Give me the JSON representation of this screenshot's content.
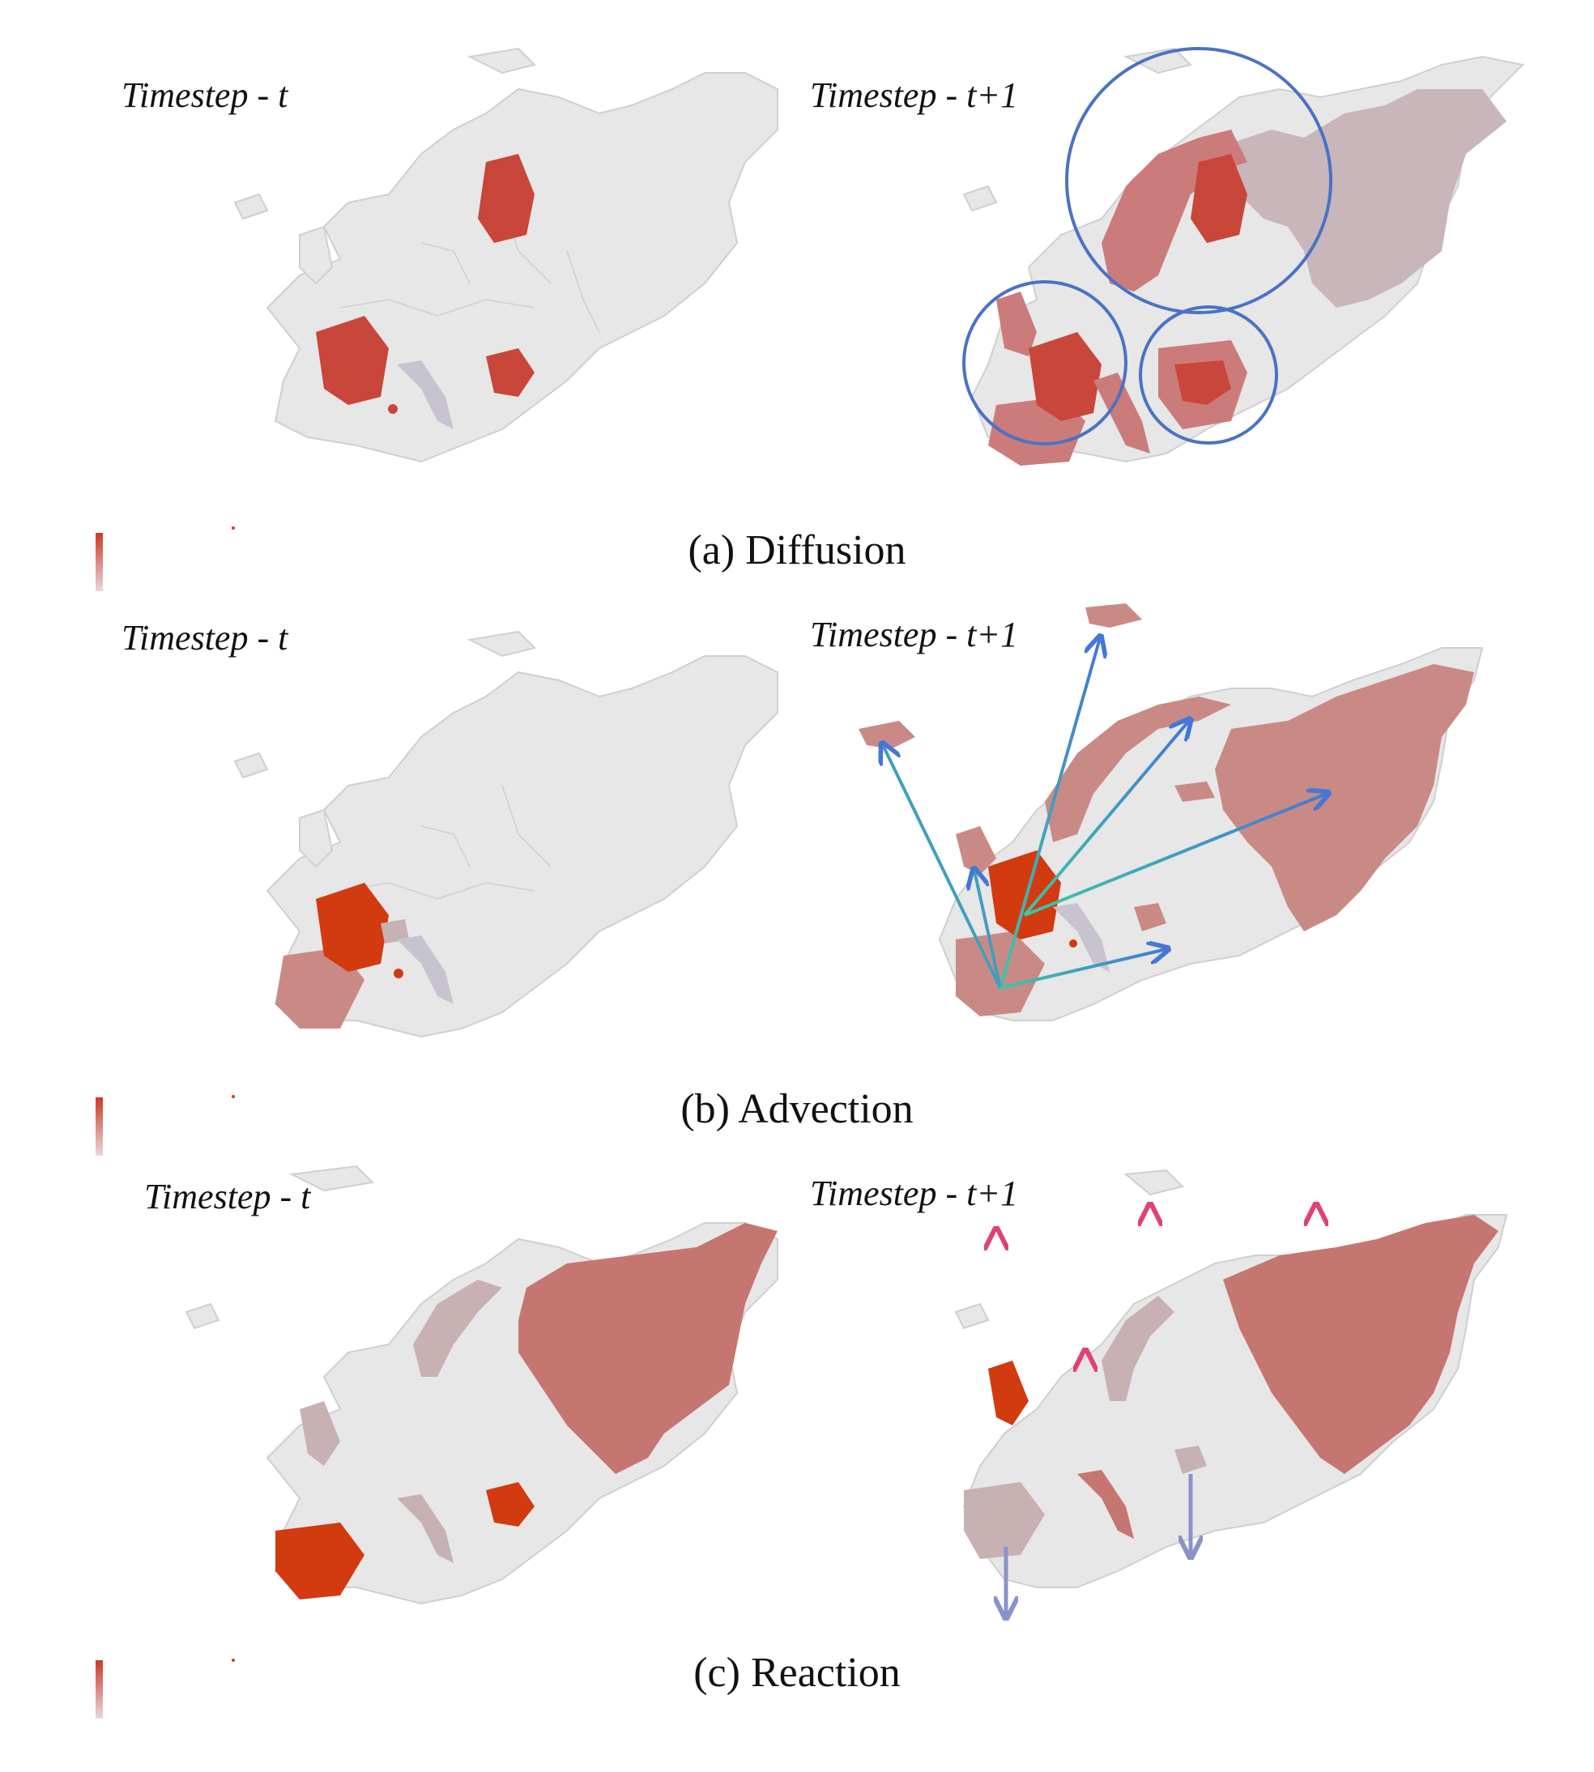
{
  "panels": [
    {
      "caption": "(a) Diffusion",
      "left_label": "Timestep - t",
      "right_label": "Timestep - t+1",
      "process": "diffusion",
      "colors": {
        "strong": "#c9463a",
        "medium": "#cc7b7b",
        "light": "#c8b6ba",
        "base": "#e7e7e7",
        "circle": "#4a72c4"
      }
    },
    {
      "caption": "(b) Advection",
      "left_label": "Timestep - t",
      "right_label": "Timestep - t+1",
      "process": "advection",
      "colors": {
        "strong": "#d23a10",
        "medium": "#c98a86",
        "light": "#c8a6a6",
        "base": "#e7e7e7",
        "arrow_start": "#3ec7a4",
        "arrow_end": "#4477d6"
      }
    },
    {
      "caption": "(c) Reaction",
      "left_label": "Timestep - t",
      "right_label": "Timestep - t+1",
      "process": "reaction",
      "colors": {
        "strong": "#d23a10",
        "medium": "#c67670",
        "light": "#c8b1b3",
        "base": "#e7e7e7",
        "up_arrow": "#e0407a",
        "down_arrow": "#8a93c9"
      }
    }
  ]
}
